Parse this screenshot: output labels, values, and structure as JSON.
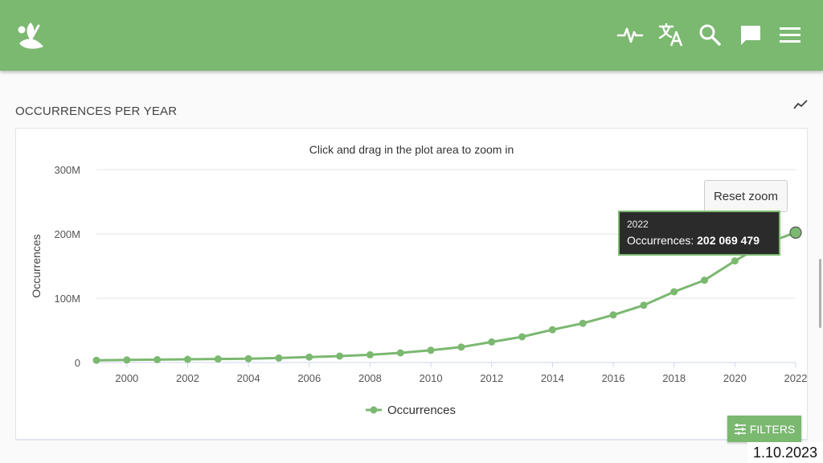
{
  "header": {
    "icons": [
      "gbif-leaf-logo",
      "activity-icon",
      "translate-icon",
      "search-icon",
      "feedback-icon",
      "menu-icon"
    ],
    "brand_color": "#7bb870"
  },
  "section": {
    "title": "OCCURRENCES PER YEAR",
    "chart_type_icon": "trend-line-icon"
  },
  "chart_data": {
    "type": "line",
    "title": "Click and drag in the plot area to zoom in",
    "ylabel": "Occurrences",
    "xlabel": "",
    "xlim": [
      1999,
      2022
    ],
    "ylim": [
      0,
      300000000
    ],
    "y_ticks": [
      {
        "value": 0,
        "label": "0"
      },
      {
        "value": 100000000,
        "label": "100M"
      },
      {
        "value": 200000000,
        "label": "200M"
      },
      {
        "value": 300000000,
        "label": "300M"
      }
    ],
    "x_ticks": [
      2000,
      2002,
      2004,
      2006,
      2008,
      2010,
      2012,
      2014,
      2016,
      2018,
      2020,
      2022
    ],
    "grid": true,
    "legend": "bottom",
    "series": [
      {
        "name": "Occurrences",
        "color": "#7bb870",
        "points": [
          [
            1999,
            3500000
          ],
          [
            2000,
            4000000
          ],
          [
            2001,
            4500000
          ],
          [
            2002,
            5000000
          ],
          [
            2003,
            5500000
          ],
          [
            2004,
            6000000
          ],
          [
            2005,
            7000000
          ],
          [
            2006,
            8500000
          ],
          [
            2007,
            10000000
          ],
          [
            2008,
            12000000
          ],
          [
            2009,
            15000000
          ],
          [
            2010,
            19000000
          ],
          [
            2011,
            24000000
          ],
          [
            2012,
            32000000
          ],
          [
            2013,
            40000000
          ],
          [
            2014,
            51000000
          ],
          [
            2015,
            61000000
          ],
          [
            2016,
            74000000
          ],
          [
            2017,
            89000000
          ],
          [
            2018,
            110000000
          ],
          [
            2019,
            128000000
          ],
          [
            2020,
            158000000
          ],
          [
            2021,
            185000000
          ],
          [
            2022,
            202069479
          ]
        ]
      }
    ]
  },
  "reset_zoom": {
    "label": "Reset zoom"
  },
  "tooltip": {
    "year": "2022",
    "series_label": "Occurrences: ",
    "value": "202 069 479"
  },
  "filters": {
    "label": "FILTERS",
    "icon": "sliders-icon"
  },
  "date_stamp": "1.10.2023"
}
